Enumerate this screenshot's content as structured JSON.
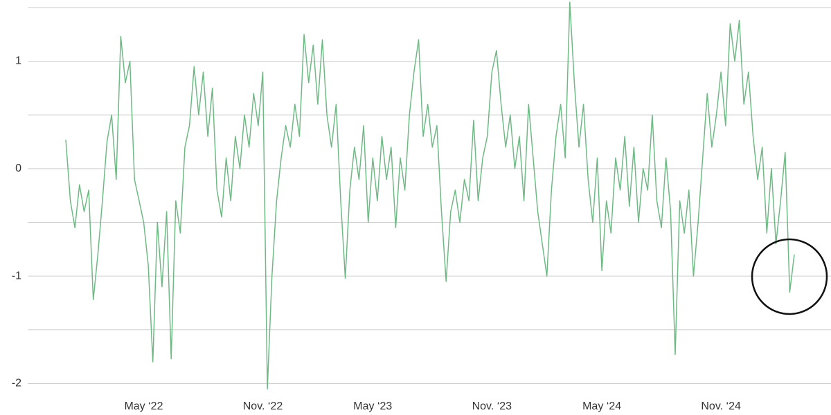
{
  "chart_data": {
    "type": "line",
    "color": "#6fb985",
    "grid": true,
    "ylim": [
      -2.1,
      1.57
    ],
    "yticks": [
      -2,
      -1,
      0,
      1
    ],
    "minor_yticks": [
      -1.5,
      -0.5,
      0.5,
      1.5
    ],
    "categories": [
      null,
      null,
      null,
      null,
      null,
      null,
      null,
      null,
      null,
      null,
      null,
      null,
      null,
      null,
      null,
      null,
      null,
      "May ‘22",
      null,
      null,
      null,
      null,
      null,
      null,
      null,
      null,
      null,
      null,
      null,
      null,
      null,
      null,
      null,
      null,
      null,
      null,
      null,
      null,
      null,
      null,
      null,
      null,
      null,
      "Nov. ‘22",
      null,
      null,
      null,
      null,
      null,
      null,
      null,
      null,
      null,
      null,
      null,
      null,
      null,
      null,
      null,
      null,
      null,
      null,
      null,
      null,
      null,
      null,
      null,
      "May ‘23",
      null,
      null,
      null,
      null,
      null,
      null,
      null,
      null,
      null,
      null,
      null,
      null,
      null,
      null,
      null,
      null,
      null,
      null,
      null,
      null,
      null,
      null,
      null,
      null,
      null,
      "Nov. ‘23",
      null,
      null,
      null,
      null,
      null,
      null,
      null,
      null,
      null,
      null,
      null,
      null,
      null,
      null,
      null,
      null,
      null,
      null,
      null,
      null,
      null,
      null,
      null,
      "May ‘24",
      null,
      null,
      null,
      null,
      null,
      null,
      null,
      null,
      null,
      null,
      null,
      null,
      null,
      null,
      null,
      null,
      null,
      null,
      null,
      null,
      null,
      null,
      null,
      null,
      null,
      "Nov. ‘24",
      null,
      null,
      null,
      null,
      null,
      null,
      null,
      null,
      null,
      null,
      null,
      null,
      null,
      null,
      null,
      null
    ],
    "values": [
      0.27,
      -0.3,
      -0.55,
      -0.15,
      -0.4,
      -0.2,
      -1.22,
      -0.8,
      -0.3,
      0.25,
      0.5,
      -0.1,
      1.23,
      0.8,
      1.0,
      -0.1,
      -0.3,
      -0.5,
      -0.9,
      -1.8,
      -0.5,
      -1.1,
      -0.4,
      -1.77,
      -0.3,
      -0.6,
      0.2,
      0.4,
      0.95,
      0.5,
      0.9,
      0.3,
      0.75,
      -0.2,
      -0.45,
      0.1,
      -0.3,
      0.3,
      0.0,
      0.5,
      0.2,
      0.7,
      0.4,
      0.9,
      -2.05,
      -1.0,
      -0.3,
      0.1,
      0.4,
      0.2,
      0.6,
      0.3,
      1.25,
      0.8,
      1.15,
      0.6,
      1.2,
      0.5,
      0.2,
      0.6,
      -0.3,
      -1.02,
      -0.2,
      0.2,
      -0.1,
      0.4,
      -0.5,
      0.1,
      -0.3,
      0.3,
      -0.1,
      0.2,
      -0.55,
      0.1,
      -0.2,
      0.5,
      0.9,
      1.2,
      0.3,
      0.6,
      0.2,
      0.4,
      -0.4,
      -1.05,
      -0.4,
      -0.2,
      -0.5,
      -0.1,
      -0.3,
      0.45,
      -0.3,
      0.1,
      0.3,
      0.9,
      1.1,
      0.6,
      0.2,
      0.5,
      0.0,
      0.3,
      -0.3,
      0.6,
      0.1,
      -0.4,
      -0.7,
      -1.0,
      -0.2,
      0.3,
      0.6,
      0.1,
      1.55,
      0.8,
      0.2,
      0.6,
      -0.1,
      -0.5,
      0.1,
      -0.95,
      -0.3,
      -0.6,
      0.1,
      -0.2,
      0.3,
      -0.35,
      0.2,
      -0.5,
      0.0,
      -0.2,
      0.5,
      -0.3,
      -0.55,
      0.1,
      -0.4,
      -1.73,
      -0.3,
      -0.6,
      -0.2,
      -1.0,
      -0.5,
      0.1,
      0.7,
      0.2,
      0.5,
      0.9,
      0.4,
      1.35,
      1.0,
      1.38,
      0.6,
      0.9,
      0.3,
      -0.1,
      0.2,
      -0.6,
      0.0,
      -0.7,
      -0.3,
      0.15,
      -1.15,
      -0.8
    ]
  }
}
